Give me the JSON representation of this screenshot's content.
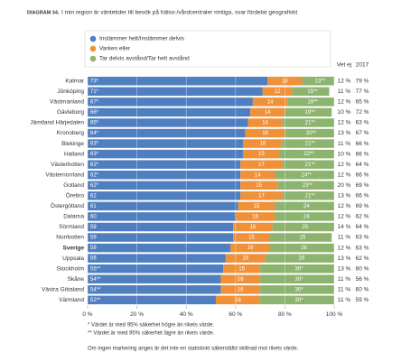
{
  "chart_data": {
    "type": "stacked-bar-horizontal",
    "title_label": "DIAGRAM 34.",
    "title": "I min region är väntetider till besök på hälso-/vårdcentraler rimliga, svar fördelat geografiskt",
    "categories": [
      "Kalmar",
      "Jönköping",
      "Västmanland",
      "Gävleborg",
      "Jämtland Härjedalen",
      "Kronoberg",
      "Blekinge",
      "Halland",
      "Västerbotten",
      "Västernorrland",
      "Gotland",
      "Örebro",
      "Östergötland",
      "Dalarna",
      "Sörmland",
      "Norrbotten",
      "Sverige",
      "Uppsala",
      "Stockholm",
      "Skåne",
      "Västra Götaland",
      "Värmland"
    ],
    "series": [
      {
        "name": "Instämmer helt/Instämmer delvis",
        "color": "#4f7fc0",
        "values": [
          73,
          71,
          67,
          66,
          65,
          64,
          63,
          63,
          62,
          62,
          62,
          62,
          61,
          60,
          59,
          59,
          58,
          56,
          55,
          54,
          54,
          52
        ],
        "value_labels": [
          "73*",
          "71*",
          "67*",
          "66*",
          "65*",
          "64*",
          "63*",
          "63*",
          "62*",
          "62*",
          "62*",
          "62",
          "61",
          "60",
          "59",
          "59",
          "58",
          "56",
          "55**",
          "54**",
          "54**",
          "52**"
        ]
      },
      {
        "name": "Varken eller",
        "color": "#f0913a",
        "values": [
          14,
          12,
          14,
          14,
          14,
          16,
          16,
          15,
          17,
          14,
          15,
          17,
          15,
          16,
          16,
          15,
          16,
          16,
          15,
          16,
          16,
          18
        ]
      },
      {
        "name": "Tar delvis avstånd/Tar helt avstånd",
        "color": "#8cb46e",
        "values": [
          13,
          15,
          19,
          19,
          21,
          20,
          21,
          22,
          21,
          24,
          23,
          21,
          24,
          24,
          25,
          25,
          26,
          28,
          30,
          30,
          30,
          30
        ],
        "value_labels": [
          "13**",
          "15**",
          "19**",
          "19**",
          "21**",
          "20**",
          "21**",
          "22**",
          "21**",
          "24**",
          "23**",
          "21**",
          "24",
          "24",
          "25",
          "25",
          "26",
          "28",
          "30*",
          "30*",
          "30*",
          "30*"
        ]
      }
    ],
    "extra_columns": [
      {
        "header": "Vet ej",
        "values": [
          "12 %",
          "11 %",
          "12 %",
          "10 %",
          "12 %",
          "13 %",
          "11 %",
          "10 %",
          "12 %",
          "12 %",
          "20 %",
          "13 %",
          "12 %",
          "12 %",
          "14 %",
          "11 %",
          "12 %",
          "13 %",
          "13 %",
          "11 %",
          "11 %",
          "11 %"
        ]
      },
      {
        "header": "2017",
        "values": [
          "79 %",
          "77 %",
          "65 %",
          "72 %",
          "63 %",
          "67 %",
          "66 %",
          "66 %",
          "64 %",
          "66 %",
          "69 %",
          "66 %",
          "69 %",
          "62 %",
          "64 %",
          "63 %",
          "63 %",
          "62 %",
          "60 %",
          "56 %",
          "60 %",
          "59 %"
        ]
      }
    ],
    "xlim": [
      0,
      100
    ],
    "xticks": [
      {
        "value": 0,
        "label": "0 %"
      },
      {
        "value": 20,
        "label": "20 %"
      },
      {
        "value": 40,
        "label": "40 %"
      },
      {
        "value": 60,
        "label": "60 %"
      },
      {
        "value": 80,
        "label": "80 %"
      },
      {
        "value": 100,
        "label": "100 %"
      }
    ],
    "grid": true,
    "footnotes": [
      "* Värdet är med 95% säkerhet högre än rikets värde.",
      "** Värdet är med 95% säkerhet lägre än rikets värde.",
      "Om ingen markering anges är det inte en statistiskt säkerställd skillnad mot rikets värde."
    ]
  }
}
